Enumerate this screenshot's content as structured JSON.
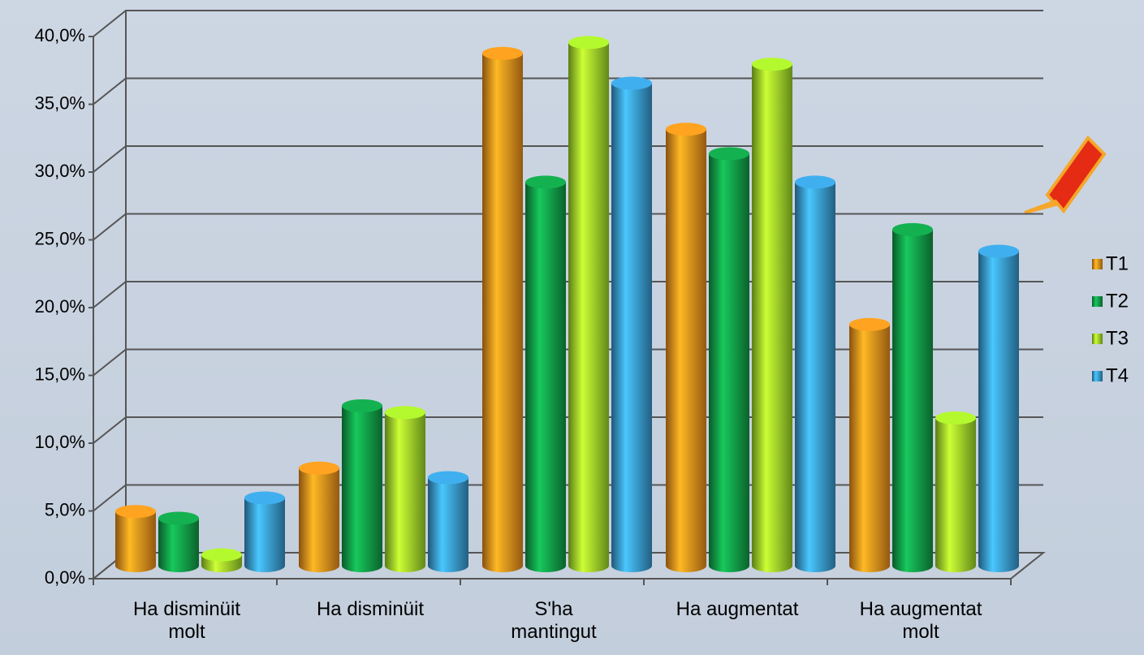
{
  "chart_data": {
    "type": "bar3d",
    "categories": [
      "Ha disminüit\nmolt",
      "Ha disminüit",
      "S'ha\nmantingut",
      "Ha augmentat",
      "Ha augmentat\nmolt"
    ],
    "series": [
      {
        "name": "T1",
        "color": "#f7941d",
        "values": [
          4.0,
          7.2,
          37.8,
          32.2,
          17.8
        ]
      },
      {
        "name": "T2",
        "color": "#12a14a",
        "values": [
          3.5,
          11.8,
          28.3,
          30.4,
          24.8
        ]
      },
      {
        "name": "T3",
        "color": "#a4e22a",
        "values": [
          0.8,
          11.3,
          38.6,
          37.0,
          10.9
        ]
      },
      {
        "name": "T4",
        "color": "#3a9fd9",
        "values": [
          5.0,
          6.5,
          35.6,
          28.3,
          23.2
        ]
      }
    ],
    "ylim": [
      0,
      40
    ],
    "yticks": [
      {
        "value": 0,
        "label": "0,0%"
      },
      {
        "value": 5,
        "label": "5,0%"
      },
      {
        "value": 10,
        "label": "10,0%"
      },
      {
        "value": 15,
        "label": "15,0%"
      },
      {
        "value": 20,
        "label": "20,0%"
      },
      {
        "value": 25,
        "label": "25,0%"
      },
      {
        "value": 30,
        "label": "30,0%"
      },
      {
        "value": 35,
        "label": "35,0%"
      },
      {
        "value": 40,
        "label": "40,0%"
      }
    ],
    "grid": true,
    "legend": "right"
  }
}
